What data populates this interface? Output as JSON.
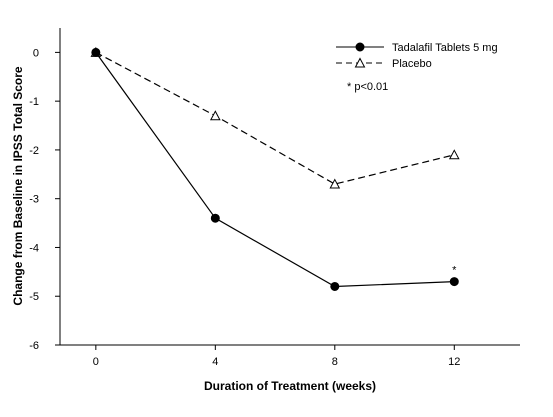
{
  "chart_data": {
    "type": "line",
    "title": "",
    "xlabel": "Duration of Treatment (weeks)",
    "ylabel": "Change from Baseline in IPSS Total Score",
    "x": [
      0,
      4,
      8,
      12
    ],
    "xticks": [
      "0",
      "4",
      "8",
      "12"
    ],
    "yticks": [
      "0",
      "-1",
      "-2",
      "-3",
      "-4",
      "-5",
      "-6"
    ],
    "xlim": [
      -1.2,
      14.2
    ],
    "ylim": [
      -6,
      0.5
    ],
    "grid": false,
    "legend_position": "top-right",
    "series": [
      {
        "name": "Tadalafil Tablets 5 mg",
        "values": [
          0,
          -3.4,
          -4.8,
          -4.7
        ],
        "line_style": "solid",
        "marker": "filled-circle",
        "color": "#000000"
      },
      {
        "name": "Placebo",
        "values": [
          0,
          -1.3,
          -2.7,
          -2.1
        ],
        "line_style": "dashed",
        "marker": "open-triangle",
        "color": "#000000"
      }
    ],
    "annotations": [
      {
        "text": "*",
        "x": 12,
        "series": "Tadalafil Tablets 5 mg"
      }
    ],
    "note": "* p<0.01"
  }
}
